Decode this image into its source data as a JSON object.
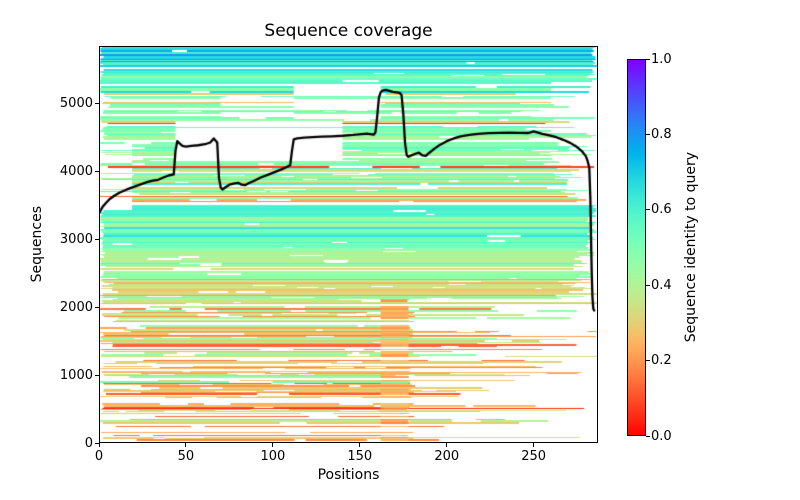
{
  "chart_data": {
    "type": "heatmap",
    "title": "Sequence coverage",
    "xlabel": "Positions",
    "ylabel": "Sequences",
    "xlim": [
      0,
      287
    ],
    "ylim": [
      0,
      5840
    ],
    "n_positions": 287,
    "n_sequences": 5840,
    "xtick_labels": [
      "0",
      "50",
      "100",
      "150",
      "200",
      "250"
    ],
    "ytick_labels": [
      "0",
      "1000",
      "2000",
      "3000",
      "4000",
      "5000"
    ],
    "grid": false,
    "colormap": "rainbow_r",
    "background": "#ffffff",
    "colorbar": {
      "label": "Sequence identity to query",
      "tick_labels": [
        "0.0",
        "0.2",
        "0.4",
        "0.6",
        "0.8",
        "1.0"
      ],
      "vmin": 0.0,
      "vmax": 1.0,
      "color_at_0": "#ff0000",
      "color_at_1": "#8000ff"
    },
    "coverage_line": {
      "color": "#000000",
      "width": 2.3,
      "points": [
        [
          0,
          3380
        ],
        [
          2,
          3470
        ],
        [
          4,
          3530
        ],
        [
          6,
          3585
        ],
        [
          9,
          3640
        ],
        [
          12,
          3685
        ],
        [
          16,
          3730
        ],
        [
          20,
          3768
        ],
        [
          24,
          3805
        ],
        [
          28,
          3840
        ],
        [
          31,
          3860
        ],
        [
          34,
          3872
        ],
        [
          37,
          3905
        ],
        [
          40,
          3935
        ],
        [
          43,
          3950
        ],
        [
          44,
          4300
        ],
        [
          45,
          4440
        ],
        [
          46,
          4415
        ],
        [
          48,
          4370
        ],
        [
          50,
          4360
        ],
        [
          53,
          4370
        ],
        [
          57,
          4380
        ],
        [
          61,
          4395
        ],
        [
          64,
          4420
        ],
        [
          66,
          4480
        ],
        [
          67,
          4450
        ],
        [
          68,
          4420
        ],
        [
          69,
          3900
        ],
        [
          70,
          3760
        ],
        [
          71,
          3730
        ],
        [
          73,
          3765
        ],
        [
          75,
          3800
        ],
        [
          78,
          3820
        ],
        [
          80,
          3828
        ],
        [
          82,
          3800
        ],
        [
          84,
          3792
        ],
        [
          86,
          3820
        ],
        [
          89,
          3855
        ],
        [
          93,
          3905
        ],
        [
          97,
          3945
        ],
        [
          101,
          3985
        ],
        [
          105,
          4025
        ],
        [
          108,
          4060
        ],
        [
          110,
          4090
        ],
        [
          111,
          4300
        ],
        [
          112,
          4465
        ],
        [
          114,
          4480
        ],
        [
          118,
          4492
        ],
        [
          123,
          4500
        ],
        [
          128,
          4506
        ],
        [
          134,
          4512
        ],
        [
          140,
          4520
        ],
        [
          146,
          4532
        ],
        [
          151,
          4545
        ],
        [
          154,
          4550
        ],
        [
          156,
          4542
        ],
        [
          158,
          4535
        ],
        [
          159,
          4570
        ],
        [
          160,
          4800
        ],
        [
          161,
          5080
        ],
        [
          162,
          5160
        ],
        [
          163,
          5185
        ],
        [
          165,
          5195
        ],
        [
          167,
          5180
        ],
        [
          169,
          5165
        ],
        [
          171,
          5158
        ],
        [
          173,
          5150
        ],
        [
          174,
          5120
        ],
        [
          175,
          4850
        ],
        [
          176,
          4420
        ],
        [
          177,
          4230
        ],
        [
          178,
          4210
        ],
        [
          180,
          4235
        ],
        [
          182,
          4255
        ],
        [
          184,
          4270
        ],
        [
          186,
          4230
        ],
        [
          188,
          4225
        ],
        [
          190,
          4270
        ],
        [
          193,
          4330
        ],
        [
          196,
          4385
        ],
        [
          200,
          4440
        ],
        [
          204,
          4480
        ],
        [
          208,
          4510
        ],
        [
          213,
          4532
        ],
        [
          218,
          4548
        ],
        [
          224,
          4558
        ],
        [
          230,
          4562
        ],
        [
          236,
          4564
        ],
        [
          242,
          4562
        ],
        [
          247,
          4560
        ],
        [
          250,
          4585
        ],
        [
          252,
          4570
        ],
        [
          255,
          4548
        ],
        [
          259,
          4525
        ],
        [
          263,
          4498
        ],
        [
          267,
          4460
        ],
        [
          271,
          4415
        ],
        [
          274,
          4370
        ],
        [
          276,
          4330
        ],
        [
          278,
          4285
        ],
        [
          280,
          4220
        ],
        [
          281,
          4150
        ],
        [
          282,
          4050
        ],
        [
          282.6,
          3600
        ],
        [
          283,
          3000
        ],
        [
          283.4,
          2500
        ],
        [
          283.8,
          2150
        ],
        [
          284.3,
          1975
        ],
        [
          284.8,
          1950
        ]
      ]
    },
    "seed": 1337,
    "identity_bands": [
      {
        "y0": 5450,
        "y1": 5841,
        "identity": 0.63,
        "sd": 0.05,
        "blank": 0.02,
        "start_max": 2,
        "end_min": 283,
        "dash": 0.15,
        "thick": 0.55,
        "blue_frac": 0.25,
        "blue_identity": 0.78
      },
      {
        "y0": 5150,
        "y1": 5450,
        "identity": 0.56,
        "sd": 0.04,
        "blank": 0.05,
        "start_max": 3,
        "end_min": 278,
        "dash": 0.3,
        "thick": 0.45,
        "blue_frac": 0.08,
        "blue_identity": 0.7
      },
      {
        "y0": 4750,
        "y1": 5150,
        "identity": 0.48,
        "sd": 0.05,
        "blank": 0.25,
        "start_max": 8,
        "end_min": 235,
        "dash": 0.5,
        "thick": 0.35,
        "low_frac": 0.06,
        "low_identity": 0.28
      },
      {
        "y0": 4100,
        "y1": 4750,
        "identity": 0.47,
        "sd": 0.06,
        "blank": 0.18,
        "start_max": 6,
        "end_min": 245,
        "dash": 0.5,
        "thick": 0.35,
        "low_frac": 0.1,
        "low_identity": 0.13
      },
      {
        "y0": 3700,
        "y1": 4100,
        "identity": 0.44,
        "sd": 0.08,
        "blank": 0.12,
        "start_max": 20,
        "end_min": 255,
        "dash": 0.5,
        "thick": 0.35,
        "low_frac": 0.14,
        "low_identity": 0.16,
        "blue_frac": 0.06,
        "blue_identity": 0.62
      },
      {
        "y0": 3550,
        "y1": 3700,
        "identity": 0.38,
        "sd": 0.1,
        "blank": 0.12,
        "start_max": 4,
        "end_min": 265,
        "dash": 0.4,
        "thick": 0.4,
        "low_frac": 0.3,
        "low_identity": 0.14
      },
      {
        "y0": 3330,
        "y1": 3550,
        "identity": 0.61,
        "sd": 0.025,
        "blank": 0.03,
        "start_max": 2,
        "end_min": 283,
        "dash": 0.12,
        "thick": 0.6
      },
      {
        "y0": 2850,
        "y1": 3330,
        "identity": 0.5,
        "sd": 0.05,
        "blank": 0.05,
        "start_max": 2,
        "end_min": 280,
        "dash": 0.3,
        "thick": 0.45,
        "blue_frac": 0.2,
        "blue_identity": 0.63
      },
      {
        "y0": 2450,
        "y1": 2850,
        "identity": 0.45,
        "sd": 0.05,
        "blank": 0.08,
        "start_max": 5,
        "end_min": 272,
        "dash": 0.4,
        "thick": 0.4,
        "low_frac": 0.15,
        "low_identity": 0.32
      },
      {
        "y0": 2050,
        "y1": 2450,
        "identity": 0.4,
        "sd": 0.06,
        "blank": 0.12,
        "start_max": 12,
        "end_min": 262,
        "dash": 0.5,
        "thick": 0.35,
        "low_frac": 0.25,
        "low_identity": 0.28
      },
      {
        "y0": 1500,
        "y1": 2050,
        "identity": 0.33,
        "sd": 0.06,
        "blank": 0.2,
        "start_max": 30,
        "end_min": 225,
        "dash": 0.6,
        "thick": 0.3,
        "low_frac": 0.2,
        "low_identity": 0.22,
        "green_frac": 0.15,
        "green_identity": 0.47
      },
      {
        "y0": 900,
        "y1": 1500,
        "identity": 0.3,
        "sd": 0.06,
        "blank": 0.26,
        "start_max": 35,
        "end_min": 215,
        "dash": 0.6,
        "thick": 0.3,
        "low_frac": 0.1,
        "low_identity": 0.14,
        "green_frac": 0.15,
        "green_identity": 0.45
      },
      {
        "y0": 400,
        "y1": 900,
        "identity": 0.27,
        "sd": 0.05,
        "blank": 0.3,
        "start_max": 40,
        "end_min": 205,
        "dash": 0.65,
        "thick": 0.3,
        "low_frac": 0.18,
        "low_identity": 0.1
      },
      {
        "y0": 0,
        "y1": 400,
        "identity": 0.25,
        "sd": 0.06,
        "blank": 0.38,
        "start_max": 45,
        "end_min": 195,
        "dash": 0.7,
        "thick": 0.3,
        "low_frac": 0.2,
        "low_identity": 0.12
      }
    ],
    "white_blocks": [
      {
        "x0": 44,
        "x1": 140,
        "y0": 4150,
        "y1": 4750,
        "density": 0.88
      },
      {
        "x0": 0,
        "x1": 19,
        "y0": 3450,
        "y1": 4400,
        "density": 0.75
      },
      {
        "x0": 112,
        "x1": 162,
        "y0": 4760,
        "y1": 5260,
        "density": 0.5
      },
      {
        "x0": 70,
        "x1": 112,
        "y0": 4750,
        "y1": 5120,
        "density": 0.3
      },
      {
        "x0": 260,
        "x1": 287,
        "y0": 4600,
        "y1": 5320,
        "density": 0.55
      }
    ],
    "low_identity_column": {
      "x0": 162,
      "x1": 178,
      "y0": 0,
      "y1": 2130,
      "identity": 0.24,
      "prob": 0.8
    },
    "lower_right_region": {
      "x_boundary": 178,
      "y1": 2130,
      "end_cluster_prob": 0.3,
      "blank_patch_prob": 0.25
    }
  }
}
